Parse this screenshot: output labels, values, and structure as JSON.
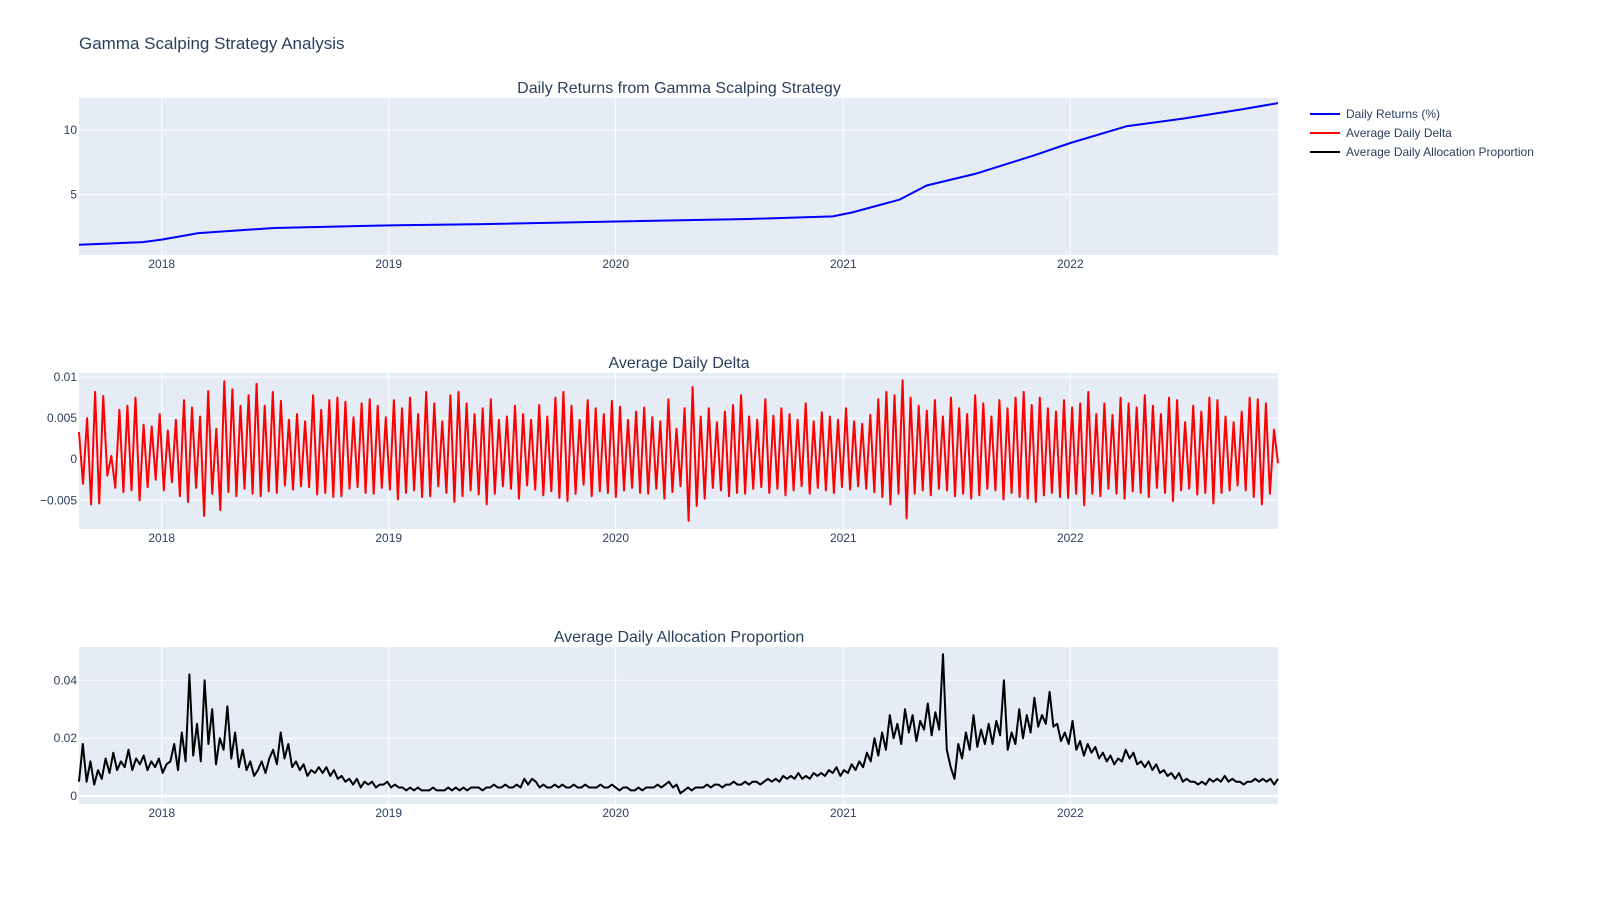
{
  "figure": {
    "title": "Gamma Scalping Strategy Analysis",
    "legend": {
      "placement": "top-right",
      "items": [
        {
          "label": "Daily Returns (%)",
          "color": "#0000ff"
        },
        {
          "label": "Average Daily Delta",
          "color": "#ff0000"
        },
        {
          "label": "Average Daily Allocation Proportion",
          "color": "#000000"
        }
      ]
    },
    "colors": {
      "plot_bg": "#e5ecf6",
      "grid": "#ffffff",
      "text": "#2a3f5f"
    }
  },
  "chart_data": [
    {
      "type": "line",
      "title": "Daily Returns from Gamma Scalping Strategy",
      "xlabel": "",
      "ylabel": "",
      "grid": true,
      "xlim": [
        "2017-08-21",
        "2022-12-01"
      ],
      "ylim": [
        0.3,
        12.5
      ],
      "x_ticks": [
        "2018",
        "2019",
        "2020",
        "2021",
        "2022"
      ],
      "y_ticks": [
        5,
        10
      ],
      "y_tick_labels": [
        "5",
        "10"
      ],
      "series": [
        {
          "name": "Daily Returns (%)",
          "color": "#0000ff",
          "x": [
            "2017-08-21",
            "2017-12-01",
            "2018-01-01",
            "2018-03-01",
            "2018-07-01",
            "2019-01-01",
            "2019-06-01",
            "2020-01-01",
            "2020-08-01",
            "2020-12-15",
            "2021-01-15",
            "2021-04-01",
            "2021-05-15",
            "2021-08-01",
            "2021-11-01",
            "2022-01-01",
            "2022-04-01",
            "2022-07-01",
            "2022-10-01",
            "2022-12-01"
          ],
          "values": [
            1.1,
            1.3,
            1.5,
            2.0,
            2.4,
            2.6,
            2.7,
            2.9,
            3.1,
            3.3,
            3.6,
            4.6,
            5.7,
            6.6,
            8.0,
            9.0,
            10.3,
            10.9,
            11.6,
            12.1
          ]
        }
      ]
    },
    {
      "type": "line",
      "title": "Average Daily Delta",
      "xlabel": "",
      "ylabel": "",
      "grid": true,
      "xlim": [
        "2017-08-21",
        "2022-12-01"
      ],
      "ylim": [
        -0.0085,
        0.0105
      ],
      "x_ticks": [
        "2018",
        "2019",
        "2020",
        "2021",
        "2022"
      ],
      "y_ticks": [
        -0.005,
        0,
        0.005,
        0.01
      ],
      "y_tick_labels": [
        "−0.005",
        "0",
        "0.005",
        "0.01"
      ],
      "series": [
        {
          "name": "Average Daily Delta",
          "color": "#ff0000",
          "x_start": "2017-08-21",
          "x_end": "2022-12-01",
          "values": [
            0.0033,
            -0.003,
            0.005,
            -0.0055,
            0.0082,
            -0.0054,
            0.0077,
            -0.002,
            0.0004,
            -0.0035,
            0.006,
            -0.004,
            0.0065,
            -0.0038,
            0.0075,
            -0.005,
            0.0042,
            -0.0034,
            0.004,
            -0.0025,
            0.0055,
            -0.0038,
            0.0035,
            -0.0028,
            0.0048,
            -0.0045,
            0.0072,
            -0.0052,
            0.0063,
            -0.0035,
            0.0052,
            -0.0069,
            0.0083,
            -0.0042,
            0.0037,
            -0.0062,
            0.0095,
            -0.004,
            0.0085,
            -0.0045,
            0.0065,
            -0.0036,
            0.0078,
            -0.0042,
            0.0092,
            -0.0045,
            0.0065,
            -0.0039,
            0.0082,
            -0.0041,
            0.0071,
            -0.0032,
            0.0048,
            -0.0037,
            0.0055,
            -0.0033,
            0.0046,
            -0.0034,
            0.0078,
            -0.0043,
            0.006,
            -0.0041,
            0.0072,
            -0.0046,
            0.0075,
            -0.0045,
            0.007,
            -0.0036,
            0.0051,
            -0.0034,
            0.0068,
            -0.0041,
            0.0073,
            -0.0042,
            0.0065,
            -0.0035,
            0.0051,
            -0.0037,
            0.0072,
            -0.0049,
            0.0062,
            -0.0041,
            0.0075,
            -0.0038,
            0.0055,
            -0.0046,
            0.0082,
            -0.0045,
            0.0068,
            -0.0033,
            0.0046,
            -0.0041,
            0.0078,
            -0.0052,
            0.0082,
            -0.0045,
            0.0068,
            -0.0038,
            0.0055,
            -0.0043,
            0.0062,
            -0.0055,
            0.0073,
            -0.0042,
            0.0048,
            -0.0033,
            0.0052,
            -0.0036,
            0.0065,
            -0.0048,
            0.0055,
            -0.0032,
            0.0048,
            -0.0037,
            0.0066,
            -0.0044,
            0.0052,
            -0.0039,
            0.0075,
            -0.0047,
            0.0082,
            -0.0051,
            0.0065,
            -0.0042,
            0.0048,
            -0.0031,
            0.0072,
            -0.0045,
            0.0062,
            -0.0039,
            0.0055,
            -0.0041,
            0.0071,
            -0.0046,
            0.0064,
            -0.0038,
            0.0048,
            -0.0035,
            0.0058,
            -0.0041,
            0.0063,
            -0.0042,
            0.0051,
            -0.0036,
            0.0046,
            -0.0048,
            0.0073,
            -0.004,
            0.0037,
            -0.0033,
            0.0062,
            -0.0075,
            0.0088,
            -0.0057,
            0.0052,
            -0.0048,
            0.0062,
            -0.0035,
            0.0045,
            -0.0038,
            0.0058,
            -0.0045,
            0.0066,
            -0.0041,
            0.0078,
            -0.0042,
            0.0052,
            -0.0036,
            0.0048,
            -0.0034,
            0.0073,
            -0.0041,
            0.0053,
            -0.0036,
            0.0062,
            -0.0044,
            0.0055,
            -0.0038,
            0.0048,
            -0.0033,
            0.0068,
            -0.0042,
            0.0046,
            -0.0035,
            0.0057,
            -0.0038,
            0.0052,
            -0.0041,
            0.0048,
            -0.0034,
            0.0062,
            -0.0037,
            0.0046,
            -0.0033,
            0.0043,
            -0.0036,
            0.0054,
            -0.004,
            0.0073,
            -0.0046,
            0.0082,
            -0.0055,
            0.0078,
            -0.0042,
            0.0096,
            -0.0072,
            0.0075,
            -0.0042,
            0.0065,
            -0.0038,
            0.0059,
            -0.0044,
            0.0072,
            -0.0036,
            0.0052,
            -0.0038,
            0.0075,
            -0.0045,
            0.0062,
            -0.0042,
            0.0055,
            -0.0048,
            0.0078,
            -0.0044,
            0.0068,
            -0.0036,
            0.0052,
            -0.0038,
            0.0072,
            -0.0049,
            0.0062,
            -0.0041,
            0.0075,
            -0.0046,
            0.0082,
            -0.0048,
            0.0066,
            -0.0052,
            0.0075,
            -0.0044,
            0.0062,
            -0.0041,
            0.0058,
            -0.0046,
            0.0072,
            -0.0047,
            0.0063,
            -0.0042,
            0.0068,
            -0.0056,
            0.0082,
            -0.0042,
            0.0055,
            -0.0045,
            0.0068,
            -0.0036,
            0.0054,
            -0.0042,
            0.0075,
            -0.0048,
            0.0068,
            -0.0039,
            0.0063,
            -0.0041,
            0.0078,
            -0.0046,
            0.0065,
            -0.0035,
            0.0055,
            -0.0041,
            0.0075,
            -0.0051,
            0.0072,
            -0.0038,
            0.0045,
            -0.0036,
            0.0065,
            -0.0043,
            0.0058,
            -0.0041,
            0.0075,
            -0.0054,
            0.0072,
            -0.0041,
            0.0052,
            -0.0038,
            0.0045,
            -0.0032,
            0.0058,
            -0.0038,
            0.0075,
            -0.0046,
            0.0073,
            -0.0055,
            0.0068,
            -0.0042,
            0.0036,
            -0.0005
          ]
        }
      ]
    },
    {
      "type": "line",
      "title": "Average Daily Allocation Proportion",
      "xlabel": "",
      "ylabel": "",
      "grid": true,
      "xlim": [
        "2017-08-21",
        "2022-12-01"
      ],
      "ylim": [
        -0.0027,
        0.0515
      ],
      "x_ticks": [
        "2018",
        "2019",
        "2020",
        "2021",
        "2022"
      ],
      "y_ticks": [
        0,
        0.02,
        0.04
      ],
      "y_tick_labels": [
        "0",
        "0.02",
        "0.04"
      ],
      "series": [
        {
          "name": "Average Daily Allocation Proportion",
          "color": "#000000",
          "x_start": "2017-08-21",
          "x_end": "2022-12-01",
          "values": [
            0.005,
            0.018,
            0.005,
            0.012,
            0.004,
            0.009,
            0.006,
            0.013,
            0.008,
            0.015,
            0.009,
            0.012,
            0.01,
            0.016,
            0.009,
            0.013,
            0.011,
            0.014,
            0.009,
            0.012,
            0.01,
            0.013,
            0.008,
            0.011,
            0.012,
            0.018,
            0.009,
            0.022,
            0.012,
            0.042,
            0.014,
            0.025,
            0.012,
            0.04,
            0.018,
            0.03,
            0.011,
            0.02,
            0.016,
            0.031,
            0.013,
            0.022,
            0.01,
            0.016,
            0.009,
            0.012,
            0.007,
            0.009,
            0.012,
            0.008,
            0.013,
            0.016,
            0.011,
            0.022,
            0.013,
            0.018,
            0.01,
            0.012,
            0.009,
            0.011,
            0.007,
            0.009,
            0.008,
            0.01,
            0.008,
            0.01,
            0.007,
            0.009,
            0.006,
            0.007,
            0.005,
            0.006,
            0.004,
            0.006,
            0.003,
            0.005,
            0.004,
            0.005,
            0.003,
            0.004,
            0.004,
            0.005,
            0.003,
            0.004,
            0.003,
            0.003,
            0.002,
            0.003,
            0.002,
            0.003,
            0.002,
            0.002,
            0.002,
            0.003,
            0.002,
            0.002,
            0.002,
            0.003,
            0.002,
            0.003,
            0.002,
            0.003,
            0.002,
            0.003,
            0.003,
            0.003,
            0.002,
            0.003,
            0.003,
            0.004,
            0.003,
            0.003,
            0.004,
            0.003,
            0.003,
            0.004,
            0.003,
            0.006,
            0.004,
            0.006,
            0.005,
            0.003,
            0.004,
            0.003,
            0.003,
            0.004,
            0.003,
            0.004,
            0.003,
            0.003,
            0.004,
            0.003,
            0.003,
            0.004,
            0.003,
            0.003,
            0.003,
            0.004,
            0.003,
            0.003,
            0.004,
            0.003,
            0.002,
            0.003,
            0.003,
            0.002,
            0.002,
            0.003,
            0.002,
            0.003,
            0.003,
            0.003,
            0.004,
            0.003,
            0.004,
            0.005,
            0.003,
            0.004,
            0.001,
            0.002,
            0.003,
            0.002,
            0.003,
            0.003,
            0.003,
            0.004,
            0.003,
            0.004,
            0.004,
            0.003,
            0.004,
            0.004,
            0.005,
            0.004,
            0.004,
            0.005,
            0.004,
            0.005,
            0.005,
            0.004,
            0.005,
            0.006,
            0.005,
            0.006,
            0.005,
            0.007,
            0.006,
            0.007,
            0.006,
            0.008,
            0.006,
            0.007,
            0.006,
            0.008,
            0.007,
            0.008,
            0.007,
            0.009,
            0.008,
            0.01,
            0.007,
            0.009,
            0.008,
            0.011,
            0.009,
            0.012,
            0.01,
            0.015,
            0.012,
            0.02,
            0.014,
            0.022,
            0.016,
            0.028,
            0.02,
            0.025,
            0.018,
            0.03,
            0.022,
            0.028,
            0.019,
            0.026,
            0.023,
            0.032,
            0.021,
            0.029,
            0.023,
            0.049,
            0.016,
            0.01,
            0.006,
            0.018,
            0.013,
            0.022,
            0.016,
            0.028,
            0.017,
            0.023,
            0.018,
            0.025,
            0.018,
            0.026,
            0.021,
            0.04,
            0.016,
            0.022,
            0.018,
            0.03,
            0.02,
            0.028,
            0.022,
            0.034,
            0.024,
            0.028,
            0.025,
            0.036,
            0.024,
            0.025,
            0.019,
            0.022,
            0.018,
            0.026,
            0.016,
            0.019,
            0.014,
            0.018,
            0.015,
            0.017,
            0.013,
            0.015,
            0.012,
            0.014,
            0.011,
            0.013,
            0.012,
            0.016,
            0.013,
            0.015,
            0.011,
            0.012,
            0.01,
            0.012,
            0.009,
            0.011,
            0.008,
            0.009,
            0.007,
            0.008,
            0.006,
            0.008,
            0.005,
            0.006,
            0.005,
            0.005,
            0.004,
            0.005,
            0.004,
            0.006,
            0.005,
            0.006,
            0.005,
            0.007,
            0.005,
            0.006,
            0.005,
            0.005,
            0.004,
            0.005,
            0.005,
            0.006,
            0.005,
            0.006,
            0.005,
            0.006,
            0.004,
            0.006
          ]
        }
      ]
    }
  ]
}
